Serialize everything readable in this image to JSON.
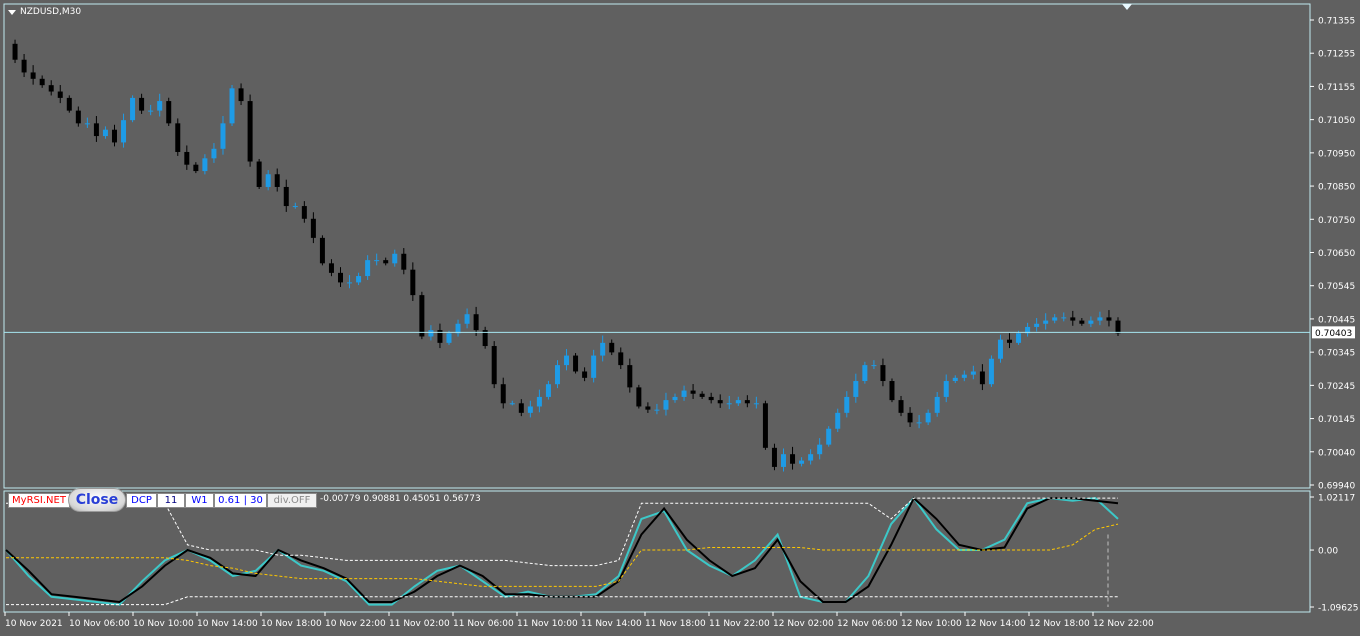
{
  "chart": {
    "symbol_title": "NZDUSD,M30",
    "current_price_label": "0.70403"
  },
  "indicator_panel": {
    "buttons": {
      "myrsi": "MyRSI.NET",
      "close": "Close",
      "dcp": "DCP",
      "period": "11",
      "timeframe": "W1",
      "level": "0.61 | 30",
      "divergence": "div.OFF"
    },
    "values_text": "-0.00779 0.90881 0.45051 0.56773",
    "axis_labels": [
      "1.02117",
      "0.00",
      "-1.09625"
    ]
  },
  "colors": {
    "background": "#606060",
    "bull_candle": "#1e9be6",
    "bear_candle": "#000000",
    "price_line": "#a6e6f0",
    "axis_text": "#ffffff",
    "rsi_line": "#3cc8c8",
    "signal_line": "#000000",
    "band_line": "#ffffff",
    "mid_line": "#ffc800"
  },
  "chart_data": [
    {
      "type": "candlestick",
      "title": "NZDUSD,M30",
      "y_ticks": [
        "0.71355",
        "0.71255",
        "0.71155",
        "0.71050",
        "0.70950",
        "0.70850",
        "0.70750",
        "0.70650",
        "0.70545",
        "0.70445",
        "0.70345",
        "0.70245",
        "0.70145",
        "0.70040",
        "0.69940"
      ],
      "ylim": [
        0.6992,
        0.7141
      ],
      "x_labels": [
        "10 Nov 2021",
        "10 Nov 06:00",
        "10 Nov 10:00",
        "10 Nov 14:00",
        "10 Nov 18:00",
        "10 Nov 22:00",
        "11 Nov 02:00",
        "11 Nov 06:00",
        "11 Nov 10:00",
        "11 Nov 14:00",
        "11 Nov 18:00",
        "11 Nov 22:00",
        "12 Nov 02:00",
        "12 Nov 06:00",
        "12 Nov 10:00",
        "12 Nov 14:00",
        "12 Nov 18:00",
        "12 Nov 22:00"
      ],
      "current_price": 0.70403,
      "price_series": [
        0.7131,
        0.7126,
        0.7122,
        0.712,
        0.7118,
        0.7116,
        0.7114,
        0.711,
        0.7106,
        0.7106,
        0.7102,
        0.7104,
        0.71,
        0.7107,
        0.7114,
        0.711,
        0.711,
        0.7113,
        0.7106,
        0.7097,
        0.7093,
        0.7091,
        0.7095,
        0.7098,
        0.7106,
        0.7117,
        0.7113,
        0.7094,
        0.7086,
        0.709,
        0.7086,
        0.708,
        0.708,
        0.7076,
        0.707,
        0.7062,
        0.7059,
        0.7056,
        0.7056,
        0.7058,
        0.7063,
        0.7063,
        0.7062,
        0.7065,
        0.706,
        0.7052,
        0.7039,
        0.7041,
        0.7037,
        0.704,
        0.7043,
        0.7046,
        0.7041,
        0.7036,
        0.7024,
        0.7018,
        0.7018,
        0.7015,
        0.7017,
        0.702,
        0.7024,
        0.703,
        0.7033,
        0.7028,
        0.7026,
        0.7033,
        0.7037,
        0.7034,
        0.703,
        0.7023,
        0.7017,
        0.7016,
        0.7016,
        0.7019,
        0.702,
        0.7022,
        0.7021,
        0.702,
        0.7019,
        0.7018,
        0.7018,
        0.7019,
        0.7018,
        0.7018,
        0.7004,
        0.6998,
        0.7002,
        0.6999,
        0.7,
        0.7002,
        0.7005,
        0.701,
        0.7015,
        0.702,
        0.7025,
        0.703,
        0.703,
        0.7025,
        0.7019,
        0.7015,
        0.7012,
        0.7012,
        0.7015,
        0.702,
        0.7025,
        0.7026,
        0.7027,
        0.7028,
        0.7024,
        0.7032,
        0.7038,
        0.7037,
        0.704,
        0.7042,
        0.7043,
        0.7044,
        0.7045,
        0.7045,
        0.7044,
        0.7043,
        0.7044,
        0.7045,
        0.7044,
        0.704
      ]
    },
    {
      "type": "line",
      "title": "MyRSI.NET",
      "ylim": [
        -1.09625,
        1.02117
      ],
      "y_ticks": [
        "1.02117",
        "0.00",
        "-1.09625"
      ],
      "series": [
        {
          "color": "#3cc8c8",
          "values": [
            0.0,
            -0.5,
            -0.9,
            -0.95,
            -1.0,
            -1.05,
            -0.6,
            -0.2,
            0.0,
            -0.2,
            -0.5,
            -0.4,
            0.0,
            -0.3,
            -0.4,
            -0.6,
            -1.05,
            -1.05,
            -0.7,
            -0.4,
            -0.3,
            -0.6,
            -0.9,
            -0.8,
            -0.9,
            -0.9,
            -0.85,
            -0.5,
            0.6,
            0.75,
            0.0,
            -0.3,
            -0.5,
            -0.2,
            0.3,
            -0.9,
            -1.0,
            -1.0,
            -0.5,
            0.5,
            1.0,
            0.4,
            0.0,
            0.0,
            0.2,
            0.9,
            1.0,
            0.95,
            1.0,
            0.6
          ]
        },
        {
          "color": "#000000",
          "values": [
            0.0,
            -0.4,
            -0.85,
            -0.9,
            -0.95,
            -1.0,
            -0.7,
            -0.3,
            0.0,
            -0.15,
            -0.45,
            -0.5,
            0.0,
            -0.2,
            -0.35,
            -0.55,
            -1.0,
            -1.0,
            -0.8,
            -0.5,
            -0.3,
            -0.5,
            -0.85,
            -0.85,
            -0.9,
            -0.9,
            -0.9,
            -0.6,
            0.3,
            0.8,
            0.2,
            -0.2,
            -0.5,
            -0.35,
            0.2,
            -0.6,
            -1.0,
            -1.0,
            -0.7,
            0.1,
            1.0,
            0.6,
            0.1,
            0.0,
            0.05,
            0.8,
            1.0,
            1.0,
            0.95,
            0.9
          ]
        },
        {
          "color": "#ffffff",
          "dashed": true,
          "values": [
            -1.05,
            -1.05,
            -1.05,
            -1.05,
            -1.05,
            -1.05,
            -1.05,
            -1.05,
            -0.9,
            -0.9,
            -0.9,
            -0.9,
            -0.9,
            -0.9,
            -0.9,
            -0.9,
            -0.9,
            -0.9,
            -0.9,
            -0.9,
            -0.9,
            -0.9,
            -0.9,
            -0.9,
            -0.9,
            -0.9,
            -0.9,
            -0.9,
            -0.9,
            -0.9,
            -0.9,
            -0.9,
            -0.9,
            -0.9,
            -0.9,
            -0.9,
            -0.9,
            -0.9,
            -0.9,
            -0.9,
            -0.9,
            -0.9,
            -0.9,
            -0.9,
            -0.9,
            -0.9,
            -0.9,
            -0.9,
            -0.9,
            -0.9
          ]
        },
        {
          "color": "#ffffff",
          "dashed": true,
          "values": [
            0.9,
            0.9,
            0.9,
            0.9,
            0.9,
            0.9,
            0.9,
            0.9,
            0.1,
            0.0,
            0.0,
            0.0,
            -0.1,
            -0.1,
            -0.15,
            -0.2,
            -0.2,
            -0.2,
            -0.2,
            -0.2,
            -0.2,
            -0.2,
            -0.2,
            -0.25,
            -0.3,
            -0.3,
            -0.3,
            -0.2,
            0.9,
            0.9,
            0.9,
            0.9,
            0.9,
            0.9,
            0.9,
            0.9,
            0.9,
            0.9,
            0.9,
            0.6,
            1.0,
            1.0,
            1.0,
            1.0,
            1.0,
            1.0,
            1.0,
            1.0,
            1.0,
            1.0
          ]
        },
        {
          "color": "#ffc800",
          "dashed": true,
          "values": [
            -0.15,
            -0.15,
            -0.15,
            -0.15,
            -0.15,
            -0.15,
            -0.15,
            -0.15,
            -0.2,
            -0.3,
            -0.35,
            -0.45,
            -0.5,
            -0.55,
            -0.55,
            -0.55,
            -0.55,
            -0.55,
            -0.55,
            -0.6,
            -0.65,
            -0.7,
            -0.7,
            -0.7,
            -0.7,
            -0.7,
            -0.7,
            -0.6,
            0.0,
            0.0,
            0.0,
            0.05,
            0.05,
            0.05,
            0.05,
            0.05,
            0.0,
            0.0,
            0.0,
            0.0,
            0.0,
            0.0,
            0.0,
            0.0,
            0.0,
            0.0,
            0.0,
            0.1,
            0.4,
            0.5
          ]
        }
      ]
    }
  ]
}
